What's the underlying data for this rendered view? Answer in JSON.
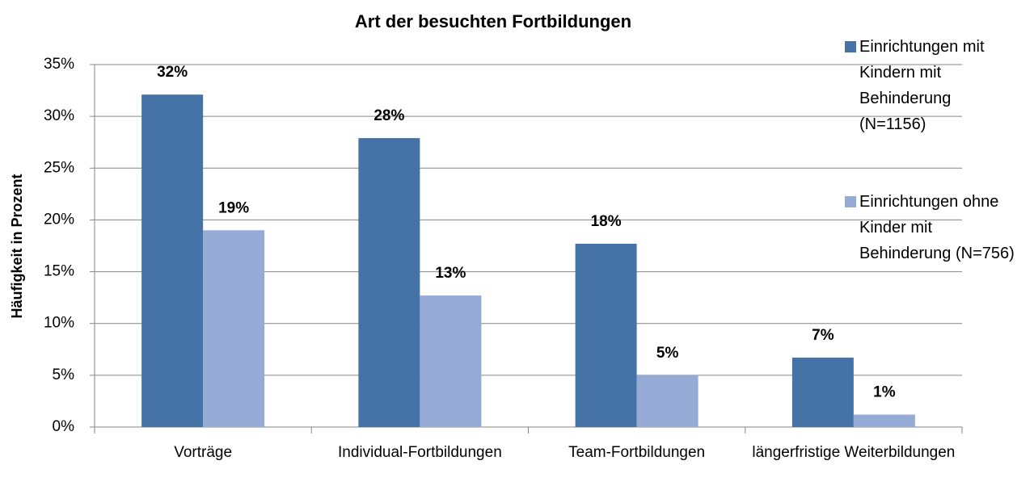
{
  "chart_data": {
    "type": "bar",
    "title": "Art der besuchten Fortbildungen",
    "y_label": "Häufigkeit in Prozent",
    "categories": [
      "Vorträge",
      "Individual-Fortbildungen",
      "Team-Fortbildungen",
      "längerfristige Weiterbildungen"
    ],
    "series": [
      {
        "name": "Einrichtungen mit Kindern mit Behinderung (N=1156)",
        "color": "#4572a7",
        "values": [
          32.1,
          27.9,
          17.7,
          6.7
        ],
        "value_labels": [
          "32%",
          "28%",
          "18%",
          "7%"
        ]
      },
      {
        "name": "Einrichtungen ohne Kinder mit Behinderung (N=756)",
        "color": "#95aad4",
        "values": [
          19.0,
          12.7,
          5.0,
          1.2
        ],
        "value_labels": [
          "19%",
          "13%",
          "5%",
          "1%"
        ]
      }
    ],
    "ylim": [
      0,
      35
    ],
    "yticks": [
      {
        "value": 0,
        "label": "0%"
      },
      {
        "value": 5,
        "label": "5%"
      },
      {
        "value": 10,
        "label": "10%"
      },
      {
        "value": 15,
        "label": "15%"
      },
      {
        "value": 20,
        "label": "20%"
      },
      {
        "value": 25,
        "label": "25%"
      },
      {
        "value": 30,
        "label": "30%"
      },
      {
        "value": 35,
        "label": "35%"
      }
    ],
    "grid": true,
    "legend": "right"
  }
}
